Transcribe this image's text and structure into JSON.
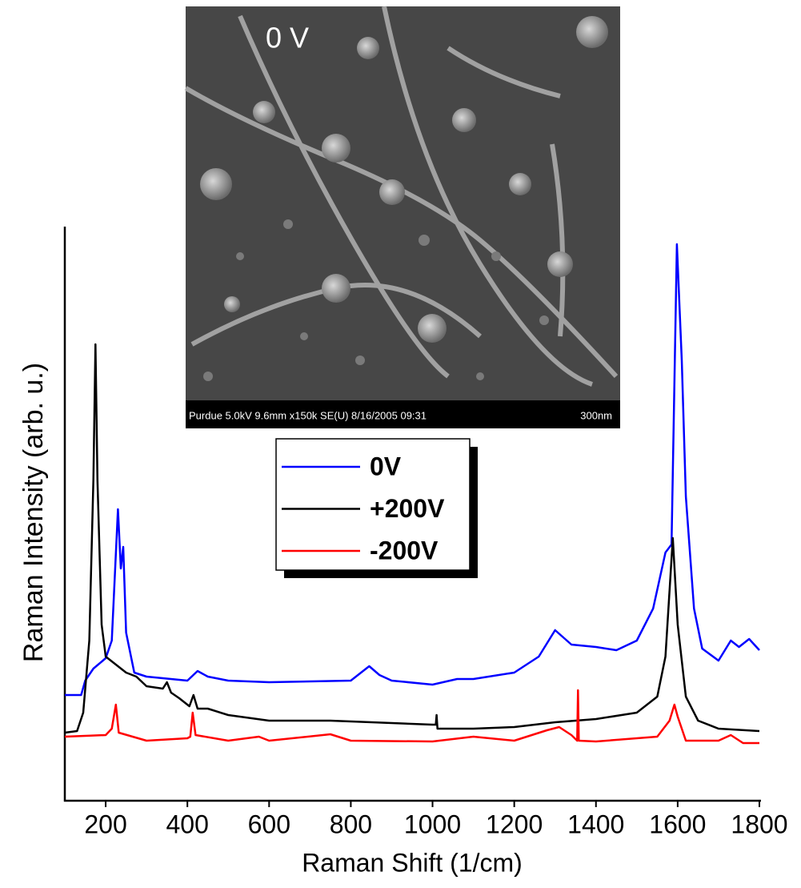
{
  "chart_data": {
    "type": "line",
    "xlabel": "Raman Shift (1/cm)",
    "ylabel": "Raman Intensity (arb. u.)",
    "xlim": [
      100,
      1800
    ],
    "xticks": [
      200,
      400,
      600,
      800,
      1000,
      1200,
      1400,
      1600,
      1800
    ],
    "ylim": [
      0,
      717
    ],
    "legend": "upper center",
    "inset": {
      "label": "0 V",
      "caption": "Purdue 5.0kV 9.6mm x150k SE(U) 8/16/2005 09:31",
      "scale": "300nm"
    },
    "series": [
      {
        "name": "0V",
        "color": "#0000ff",
        "x": [
          100,
          140,
          150,
          170,
          200,
          215,
          230,
          237,
          243,
          250,
          270,
          300,
          400,
          425,
          450,
          500,
          600,
          800,
          845,
          870,
          900,
          1000,
          1060,
          1100,
          1200,
          1260,
          1300,
          1340,
          1400,
          1450,
          1500,
          1540,
          1570,
          1585,
          1598,
          1610,
          1620,
          1640,
          1660,
          1700,
          1730,
          1750,
          1775,
          1800
        ],
        "values": [
          132,
          132,
          150,
          165,
          178,
          200,
          364,
          290,
          317,
          210,
          160,
          155,
          150,
          162,
          155,
          150,
          148,
          150,
          168,
          157,
          150,
          145,
          152,
          152,
          160,
          180,
          213,
          195,
          192,
          188,
          200,
          240,
          310,
          320,
          695,
          550,
          380,
          240,
          190,
          175,
          200,
          192,
          202,
          188
        ]
      },
      {
        "name": "+200V",
        "color": "#000000",
        "x": [
          100,
          130,
          145,
          160,
          170,
          175,
          180,
          190,
          200,
          250,
          275,
          300,
          340,
          350,
          360,
          380,
          405,
          415,
          425,
          450,
          500,
          600,
          750,
          1000,
          1008,
          1010,
          1012,
          1100,
          1200,
          1300,
          1400,
          1500,
          1550,
          1570,
          1588,
          1600,
          1620,
          1650,
          1700,
          1800
        ],
        "values": [
          85,
          87,
          110,
          200,
          400,
          570,
          400,
          220,
          180,
          160,
          155,
          143,
          140,
          148,
          135,
          128,
          118,
          132,
          115,
          115,
          107,
          100,
          100,
          95,
          95,
          107,
          90,
          90,
          92,
          98,
          102,
          110,
          130,
          180,
          328,
          220,
          130,
          100,
          90,
          87
        ]
      },
      {
        "name": "-200V",
        "color": "#ff0000",
        "x": [
          100,
          200,
          215,
          225,
          232,
          300,
          400,
          407,
          413,
          420,
          500,
          575,
          600,
          750,
          800,
          1000,
          1100,
          1200,
          1280,
          1310,
          1340,
          1354,
          1356,
          1358,
          1400,
          1550,
          1580,
          1592,
          1600,
          1620,
          1700,
          1730,
          1760,
          1800
        ],
        "values": [
          80,
          82,
          90,
          120,
          85,
          75,
          78,
          80,
          110,
          82,
          75,
          80,
          75,
          83,
          75,
          74,
          80,
          75,
          88,
          92,
          82,
          75,
          138,
          75,
          74,
          80,
          100,
          120,
          105,
          75,
          75,
          82,
          72,
          72
        ]
      }
    ]
  }
}
